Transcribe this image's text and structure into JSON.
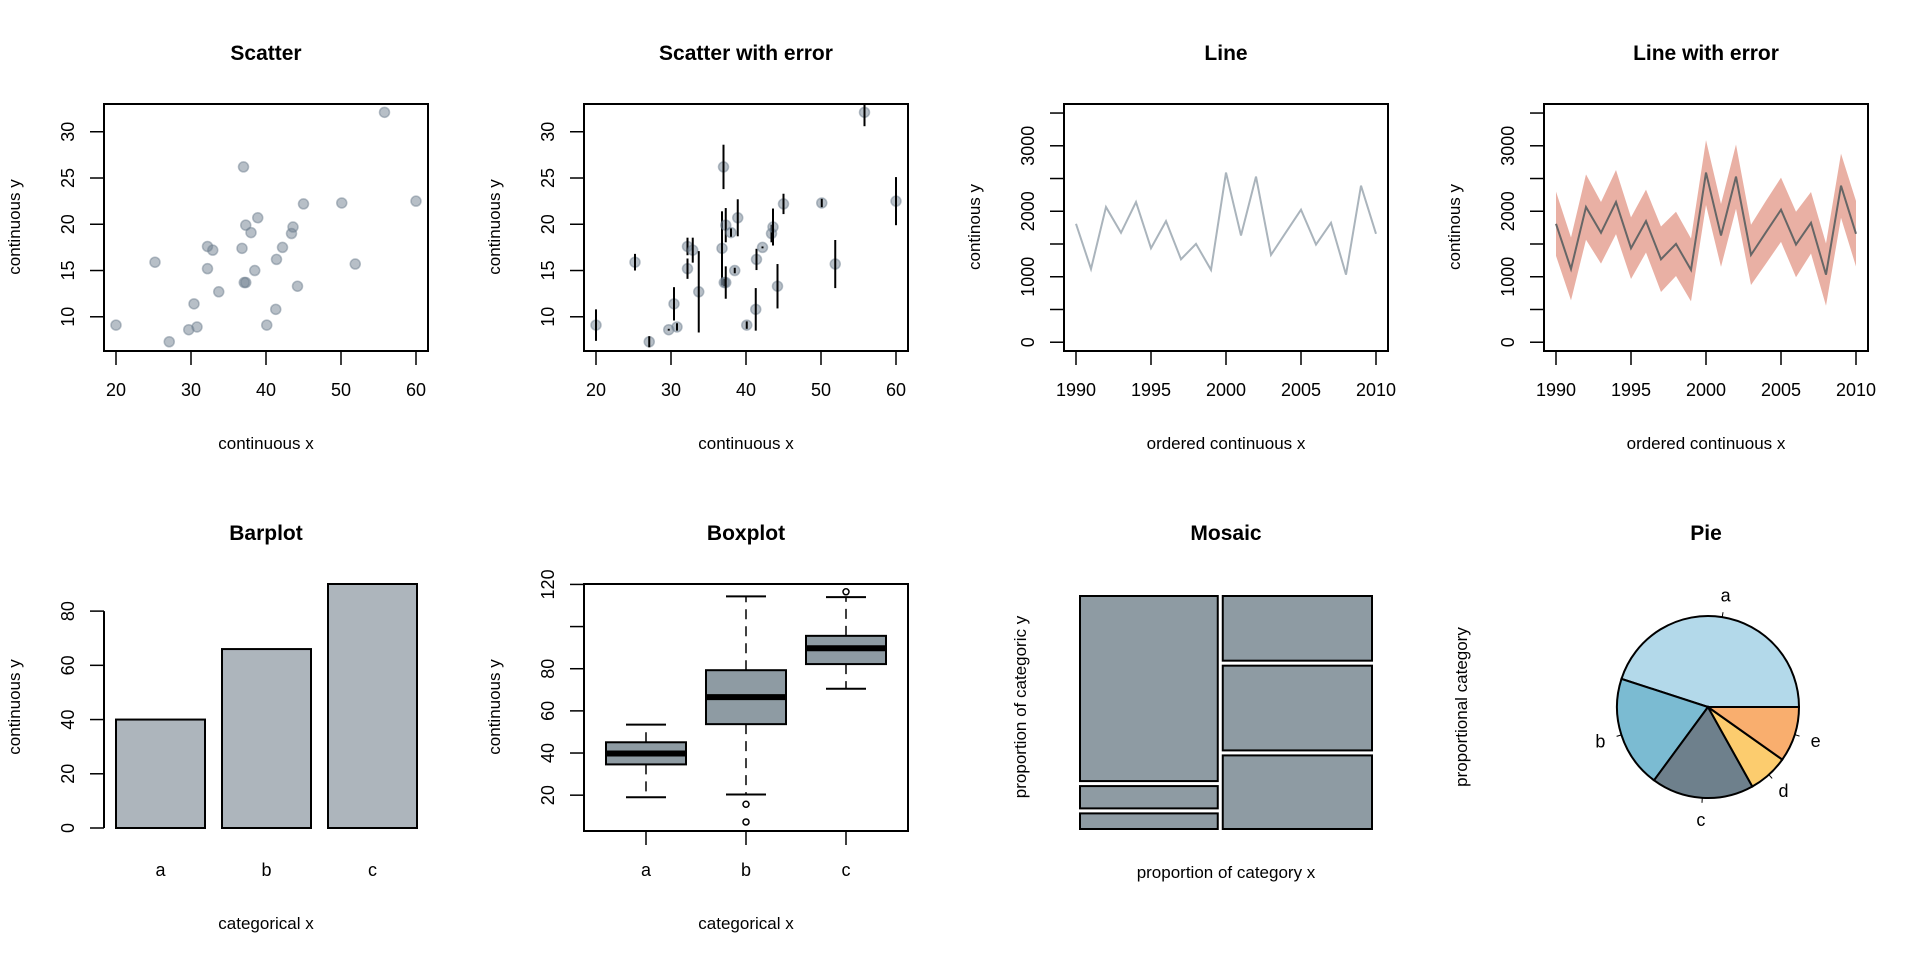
{
  "chart_data": [
    {
      "type": "scatter",
      "title": "Scatter",
      "xlabel": "continuous x",
      "ylabel": "continuous y",
      "xlim": [
        18.4,
        61.6
      ],
      "ylim": [
        6.3,
        33.0
      ],
      "xticks": [
        20,
        30,
        40,
        50,
        60
      ],
      "yticks": [
        10,
        15,
        20,
        25,
        30
      ],
      "point_color": "#708090",
      "x": [
        20.0,
        25.2,
        27.1,
        29.7,
        30.8,
        30.4,
        32.2,
        32.2,
        32.9,
        33.7,
        37.0,
        36.8,
        37.1,
        37.3,
        37.3,
        38.0,
        38.5,
        38.9,
        40.1,
        41.3,
        41.4,
        42.2,
        43.4,
        43.6,
        44.2,
        45.0,
        50.1,
        51.9,
        55.8,
        60.0
      ],
      "y": [
        9.1,
        15.9,
        7.3,
        8.6,
        8.9,
        11.4,
        17.6,
        15.2,
        17.2,
        12.7,
        26.2,
        17.4,
        13.7,
        13.7,
        19.9,
        19.1,
        15.0,
        20.7,
        9.1,
        10.8,
        16.2,
        17.5,
        19.0,
        19.7,
        13.3,
        22.2,
        22.3,
        15.7,
        32.1,
        22.5
      ]
    },
    {
      "type": "scatter",
      "title": "Scatter with error",
      "xlabel": "continuous x",
      "ylabel": "continuous y",
      "xlim": [
        18.4,
        61.6
      ],
      "ylim": [
        6.3,
        33.0
      ],
      "xticks": [
        20,
        30,
        40,
        50,
        60
      ],
      "yticks": [
        10,
        15,
        20,
        25,
        30
      ],
      "point_color": "#708090",
      "x": [
        20.0,
        25.2,
        27.1,
        29.7,
        30.8,
        30.4,
        32.2,
        32.2,
        32.9,
        33.7,
        37.0,
        36.8,
        37.1,
        37.3,
        37.3,
        38.0,
        38.5,
        38.9,
        40.1,
        41.3,
        41.4,
        42.2,
        43.4,
        43.6,
        44.2,
        45.0,
        50.1,
        51.9,
        55.8,
        60.0
      ],
      "y": [
        9.1,
        15.9,
        7.3,
        8.6,
        8.9,
        11.4,
        17.6,
        15.2,
        17.2,
        12.7,
        26.2,
        17.4,
        13.7,
        13.7,
        19.9,
        19.1,
        15.0,
        20.7,
        9.1,
        10.8,
        16.2,
        17.5,
        19.0,
        19.7,
        13.3,
        22.2,
        22.3,
        15.7,
        32.1,
        22.5
      ],
      "error": [
        1.7,
        0.9,
        0.6,
        0.1,
        0.4,
        1.8,
        0.95,
        1.1,
        1.35,
        4.4,
        2.4,
        4.0,
        0.4,
        1.75,
        1.85,
        0.45,
        0.3,
        2.0,
        0.4,
        2.3,
        1.15,
        0.1,
        0.95,
        2.0,
        2.4,
        1.1,
        0.45,
        2.6,
        1.5,
        2.6
      ]
    },
    {
      "type": "line",
      "title": "Line",
      "xlabel": "ordered continuous x",
      "ylabel": "continous y",
      "xlim": [
        1989.2,
        2010.8
      ],
      "ylim": [
        -134,
        3638
      ],
      "xticks": [
        1990,
        1995,
        2000,
        2005,
        2010
      ],
      "yticks": [
        0,
        1000,
        2000,
        3000
      ],
      "minor_yticks": [
        500,
        1500,
        2500,
        3500
      ],
      "line_color": "#AAB4BC",
      "x": [
        1990,
        1991,
        1992,
        1993,
        1994,
        1995,
        1996,
        1997,
        1998,
        1999,
        2000,
        2001,
        2002,
        2003,
        2004,
        2005,
        2006,
        2007,
        2008,
        2009,
        2010
      ],
      "y": [
        1809,
        1119,
        2064,
        1671,
        2141,
        1436,
        1850,
        1267,
        1502,
        1104,
        2591,
        1630,
        2529,
        1334,
        1680,
        2023,
        1492,
        1824,
        1032,
        2391,
        1656
      ]
    },
    {
      "type": "area",
      "title": "Line with error",
      "xlabel": "ordered continuous x",
      "ylabel": "continous y",
      "xlim": [
        1989.2,
        2010.8
      ],
      "ylim": [
        -134,
        3638
      ],
      "xticks": [
        1990,
        1995,
        2000,
        2005,
        2010
      ],
      "yticks": [
        0,
        1000,
        2000,
        3000
      ],
      "minor_yticks": [
        500,
        1500,
        2500,
        3500
      ],
      "line_color": "#666666",
      "band_color": "#E9B0A4",
      "x": [
        1990,
        1991,
        1992,
        1993,
        1994,
        1995,
        1996,
        1997,
        1998,
        1999,
        2000,
        2001,
        2002,
        2003,
        2004,
        2005,
        2006,
        2007,
        2008,
        2009,
        2010
      ],
      "y": [
        1809,
        1119,
        2064,
        1671,
        2141,
        1436,
        1850,
        1267,
        1502,
        1104,
        2591,
        1630,
        2529,
        1334,
        1680,
        2023,
        1492,
        1824,
        1032,
        2391,
        1656
      ],
      "error": [
        490,
        480,
        500,
        470,
        490,
        470,
        480,
        500,
        490,
        480,
        495,
        480,
        490,
        460,
        480,
        490,
        500,
        470,
        475,
        490,
        500
      ]
    },
    {
      "type": "bar",
      "title": "Barplot",
      "xlabel": "categorical x",
      "ylabel": "continuous y",
      "categories": [
        "a",
        "b",
        "c"
      ],
      "values": [
        40,
        66,
        90
      ],
      "ylim": [
        0,
        90
      ],
      "yticks": [
        0,
        20,
        40,
        60,
        80
      ],
      "bar_color": "#ADB5BC"
    },
    {
      "type": "box",
      "title": "Boxplot",
      "xlabel": "categorical x",
      "ylabel": "continuous y",
      "categories": [
        "a",
        "b",
        "c"
      ],
      "xlim": [
        0.38,
        3.62
      ],
      "ylim": [
        3,
        120.2
      ],
      "yticks": [
        20,
        40,
        60,
        80,
        100,
        120
      ],
      "ytick_labels": [
        "20",
        "40",
        "60",
        "80",
        "",
        "120"
      ],
      "box_color": "#8E9BA3",
      "boxes": [
        {
          "min": 19.0,
          "q1": 34.6,
          "median": 39.8,
          "q3": 45.1,
          "max": 53.5,
          "outliers": []
        },
        {
          "min": 20.3,
          "q1": 53.7,
          "median": 66.5,
          "q3": 79.3,
          "max": 114.3,
          "outliers": [
            15.7,
            7.3
          ]
        },
        {
          "min": 70.5,
          "q1": 82.2,
          "median": 89.7,
          "q3": 95.6,
          "max": 114.0,
          "outliers": [
            116.5
          ]
        }
      ]
    },
    {
      "type": "mosaic",
      "title": "Mosaic",
      "xlabel": "proportion of category x",
      "ylabel": "proportion of categoric  y",
      "fill_color": "#8E9BA3",
      "columns": [
        {
          "width": 0.48,
          "cells": [
            0.83,
            0.1,
            0.07
          ]
        },
        {
          "width": 0.52,
          "cells": [
            0.29,
            0.38,
            0.33
          ]
        }
      ]
    },
    {
      "type": "pie",
      "title": "Pie",
      "ylabel": "proportional category",
      "labels": [
        "a",
        "b",
        "c",
        "d",
        "e"
      ],
      "values": [
        0.45,
        0.199,
        0.182,
        0.071,
        0.098
      ],
      "colors": [
        "#B3D9EA",
        "#7BBBD2",
        "#6E808C",
        "#FCCC6E",
        "#F9AE6E"
      ]
    }
  ]
}
